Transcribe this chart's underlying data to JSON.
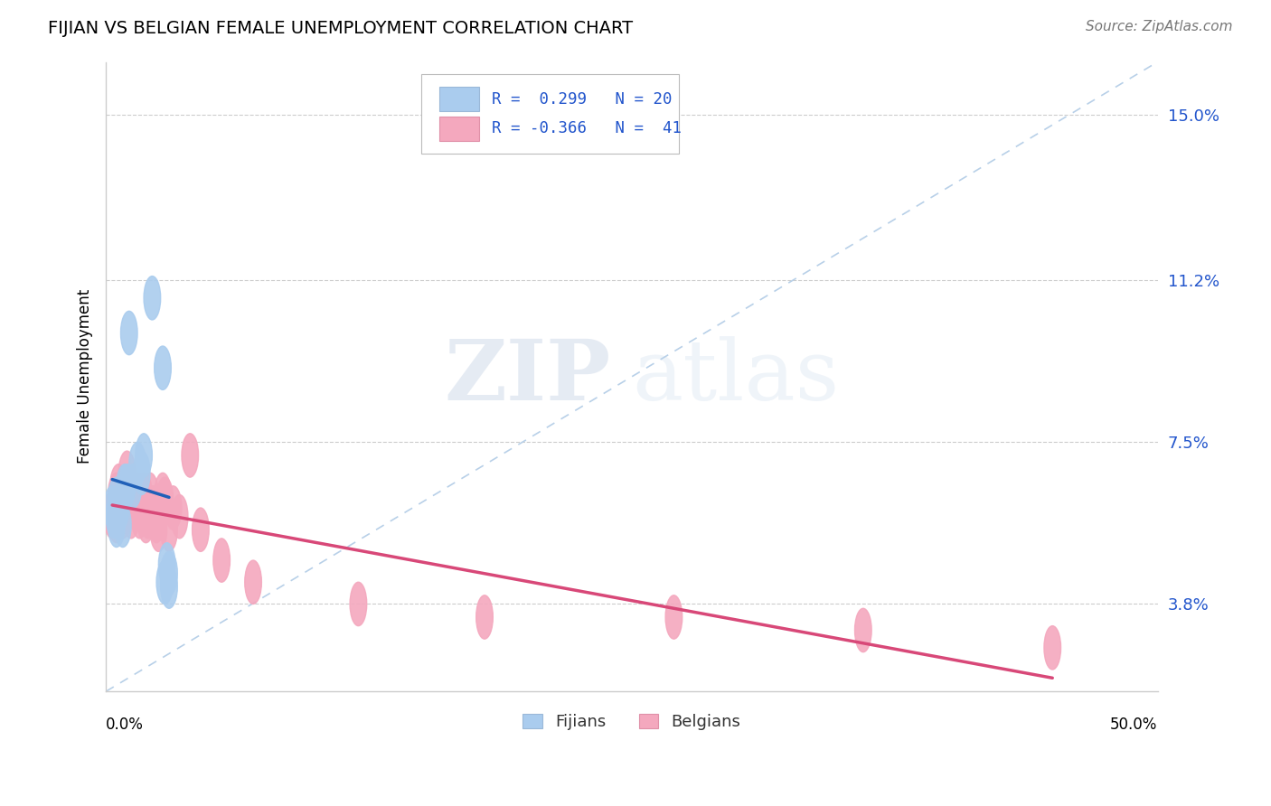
{
  "title": "FIJIAN VS BELGIAN FEMALE UNEMPLOYMENT CORRELATION CHART",
  "source": "Source: ZipAtlas.com",
  "ylabel": "Female Unemployment",
  "yticks": [
    0.038,
    0.075,
    0.112,
    0.15
  ],
  "ytick_labels": [
    "3.8%",
    "7.5%",
    "11.2%",
    "15.0%"
  ],
  "xlim": [
    0.0,
    0.5
  ],
  "ylim": [
    0.018,
    0.162
  ],
  "fijian_color": "#aaccee",
  "belgian_color": "#f4a8be",
  "fijian_line_color": "#2060b8",
  "belgian_line_color": "#d84878",
  "diagonal_color": "#b8d0e8",
  "fijian_R": "0.299",
  "fijian_N": "20",
  "belgian_R": "-0.366",
  "belgian_N": "41",
  "fijian_x": [
    0.003,
    0.004,
    0.005,
    0.005,
    0.006,
    0.007,
    0.008,
    0.009,
    0.01,
    0.011,
    0.013,
    0.015,
    0.017,
    0.018,
    0.022,
    0.027,
    0.028,
    0.029,
    0.03,
    0.03
  ],
  "fijian_y": [
    0.06,
    0.058,
    0.062,
    0.056,
    0.06,
    0.06,
    0.056,
    0.065,
    0.065,
    0.1,
    0.065,
    0.07,
    0.068,
    0.072,
    0.108,
    0.092,
    0.043,
    0.047,
    0.042,
    0.045
  ],
  "belgian_x": [
    0.003,
    0.004,
    0.005,
    0.005,
    0.006,
    0.006,
    0.007,
    0.007,
    0.008,
    0.009,
    0.01,
    0.01,
    0.012,
    0.013,
    0.014,
    0.015,
    0.016,
    0.017,
    0.018,
    0.019,
    0.02,
    0.021,
    0.022,
    0.023,
    0.024,
    0.025,
    0.026,
    0.027,
    0.028,
    0.03,
    0.032,
    0.035,
    0.04,
    0.045,
    0.055,
    0.07,
    0.12,
    0.18,
    0.27,
    0.36,
    0.45
  ],
  "belgian_y": [
    0.058,
    0.06,
    0.063,
    0.057,
    0.065,
    0.058,
    0.06,
    0.062,
    0.058,
    0.06,
    0.062,
    0.068,
    0.058,
    0.063,
    0.06,
    0.063,
    0.058,
    0.06,
    0.063,
    0.057,
    0.058,
    0.063,
    0.06,
    0.06,
    0.057,
    0.055,
    0.06,
    0.063,
    0.062,
    0.055,
    0.06,
    0.058,
    0.072,
    0.055,
    0.048,
    0.043,
    0.038,
    0.035,
    0.035,
    0.032,
    0.028
  ]
}
